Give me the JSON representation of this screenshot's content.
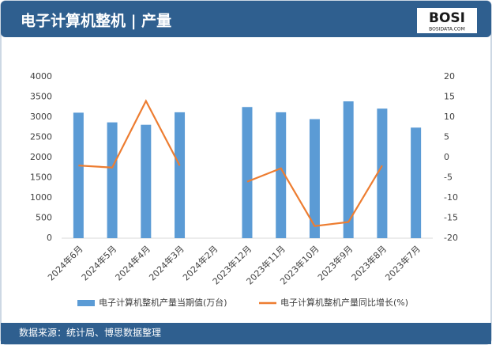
{
  "header": {
    "title": "电子计算机整机 | 产量",
    "logo": "BOSI",
    "logo_sub": "BOSIDATA.COM"
  },
  "chart_data": {
    "type": "bar_line",
    "categories": [
      "2024年6月",
      "2024年5月",
      "2024年4月",
      "2024年3月",
      "2024年2月",
      "2023年12月",
      "2023年11月",
      "2023年10月",
      "2023年9月",
      "2023年8月",
      "2023年7月"
    ],
    "series": [
      {
        "name": "电子计算机整机产量当期值(万台)",
        "color": "#5b9bd5",
        "type": "bar",
        "values": [
          3110,
          2870,
          2810,
          3120,
          null,
          3250,
          3120,
          2950,
          3390,
          3210,
          2740
        ]
      },
      {
        "name": "电子计算机整机产量同比增长(%)",
        "color": "#ed7d31",
        "type": "line",
        "axis": "y2",
        "values": [
          -2,
          -2.5,
          14,
          -2,
          null,
          -6,
          -2.7,
          -17,
          -16,
          -2,
          null
        ]
      }
    ],
    "ylim": [
      0,
      4000
    ],
    "yticks": [
      0,
      500,
      1000,
      1500,
      2000,
      2500,
      3000,
      3500,
      4000
    ],
    "y2lim": [
      -20,
      20
    ],
    "y2ticks": [
      -20,
      -15,
      -10,
      -5,
      0,
      5,
      10,
      15,
      20
    ],
    "grid": false
  },
  "footer": {
    "source": "数据来源：统计局、博思数据整理"
  }
}
